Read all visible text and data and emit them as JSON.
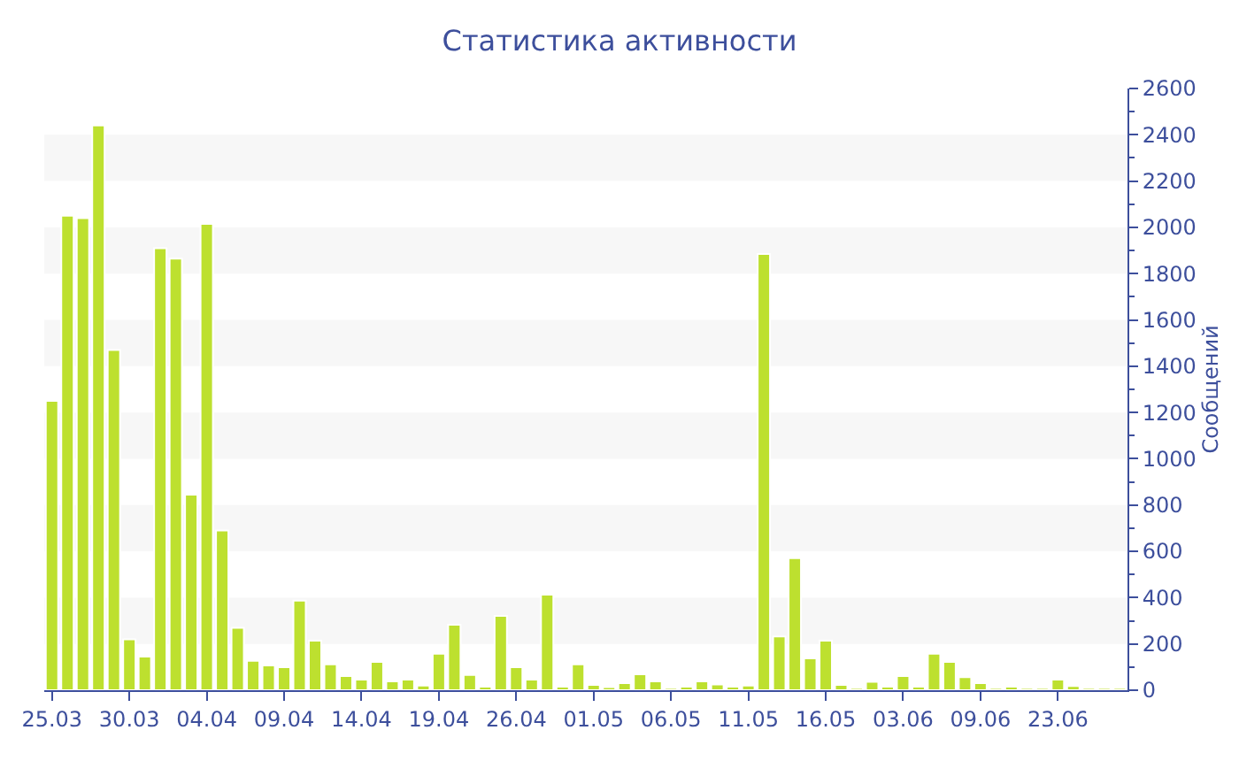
{
  "chart_data": {
    "type": "bar",
    "title": "Статистика активности",
    "ylabel": "Сообщений",
    "categories": [
      "25.03",
      null,
      null,
      null,
      null,
      "30.03",
      null,
      null,
      null,
      null,
      "04.04",
      null,
      null,
      null,
      null,
      "09.04",
      null,
      null,
      null,
      null,
      "14.04",
      null,
      null,
      null,
      null,
      "19.04",
      null,
      null,
      null,
      null,
      "26.04",
      null,
      null,
      null,
      null,
      "01.05",
      null,
      null,
      null,
      null,
      "06.05",
      null,
      null,
      null,
      null,
      "11.05",
      null,
      null,
      null,
      null,
      "16.05",
      null,
      null,
      null,
      null,
      "03.06",
      null,
      null,
      null,
      null,
      "09.06",
      null,
      null,
      null,
      null,
      "23.06",
      null,
      null,
      null,
      null
    ],
    "values": [
      1250,
      2050,
      2040,
      2440,
      1470,
      220,
      145,
      1910,
      1865,
      845,
      2015,
      690,
      270,
      127,
      107,
      99,
      387,
      214,
      112,
      61,
      46,
      122,
      38,
      46,
      20,
      158,
      283,
      66,
      15,
      321,
      99,
      46,
      413,
      15,
      112,
      23,
      13,
      31,
      69,
      38,
      10,
      15,
      38,
      25,
      15,
      20,
      1885,
      232,
      571,
      138,
      214,
      23,
      10,
      36,
      15,
      61,
      15,
      158,
      122,
      56,
      31,
      10,
      15,
      10,
      10,
      46,
      18,
      10,
      10,
      10
    ],
    "color": "#bde02f",
    "ylim": [
      0,
      2600
    ],
    "yticks": [
      0,
      200,
      400,
      600,
      800,
      1000,
      1200,
      1400,
      1600,
      1800,
      2000,
      2200,
      2400,
      2600
    ],
    "bands": [
      {
        "axis": "y",
        "from": 200,
        "to": 400,
        "color": "#f7f7f7"
      },
      {
        "axis": "y",
        "from": 600,
        "to": 800,
        "color": "#f7f7f7"
      },
      {
        "axis": "y",
        "from": 1000,
        "to": 1200,
        "color": "#f7f7f7"
      },
      {
        "axis": "y",
        "from": 1400,
        "to": 1600,
        "color": "#f7f7f7"
      },
      {
        "axis": "y",
        "from": 1800,
        "to": 2000,
        "color": "#f7f7f7"
      },
      {
        "axis": "y",
        "from": 2200,
        "to": 2400,
        "color": "#f7f7f7"
      }
    ]
  }
}
